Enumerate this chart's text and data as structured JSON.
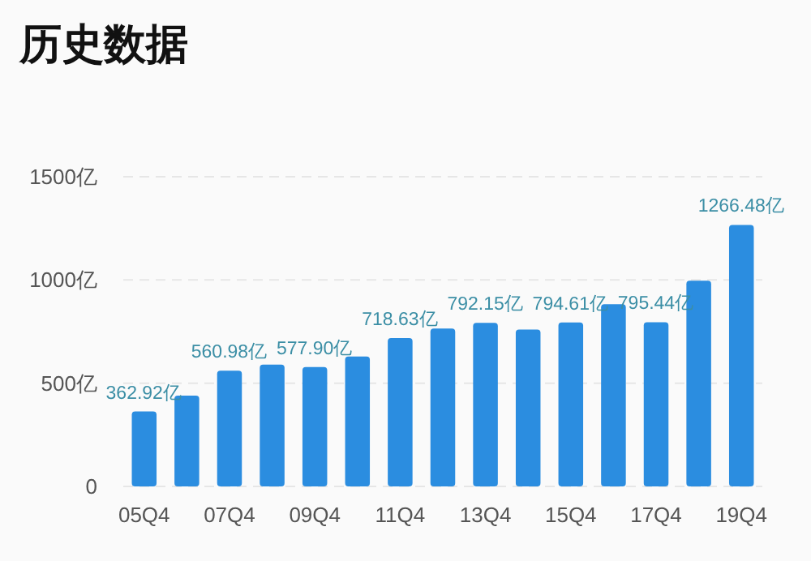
{
  "chart_data": {
    "type": "bar",
    "title": "历史数据",
    "categories": [
      "05Q4",
      null,
      "07Q4",
      null,
      "09Q4",
      null,
      "11Q4",
      null,
      "13Q4",
      null,
      "15Q4",
      null,
      "17Q4",
      null,
      "19Q4"
    ],
    "values": [
      362.92,
      440,
      560.98,
      590,
      577.9,
      629,
      718.63,
      765,
      792.15,
      760,
      794.61,
      883,
      795.44,
      996,
      1266.48
    ],
    "value_labels": [
      "362.92亿",
      null,
      "560.98亿",
      null,
      "577.90亿",
      null,
      "718.63亿",
      null,
      "792.15亿",
      null,
      "794.61亿",
      null,
      "795.44亿",
      null,
      "1266.48亿"
    ],
    "color": "#2b8de0",
    "ylim": [
      0,
      1500
    ],
    "yticks": [
      {
        "value": 0,
        "label": "0"
      },
      {
        "value": 500,
        "label": "500亿"
      },
      {
        "value": 1000,
        "label": "1000亿"
      },
      {
        "value": 1500,
        "label": "1500亿"
      }
    ],
    "grid": "y"
  }
}
